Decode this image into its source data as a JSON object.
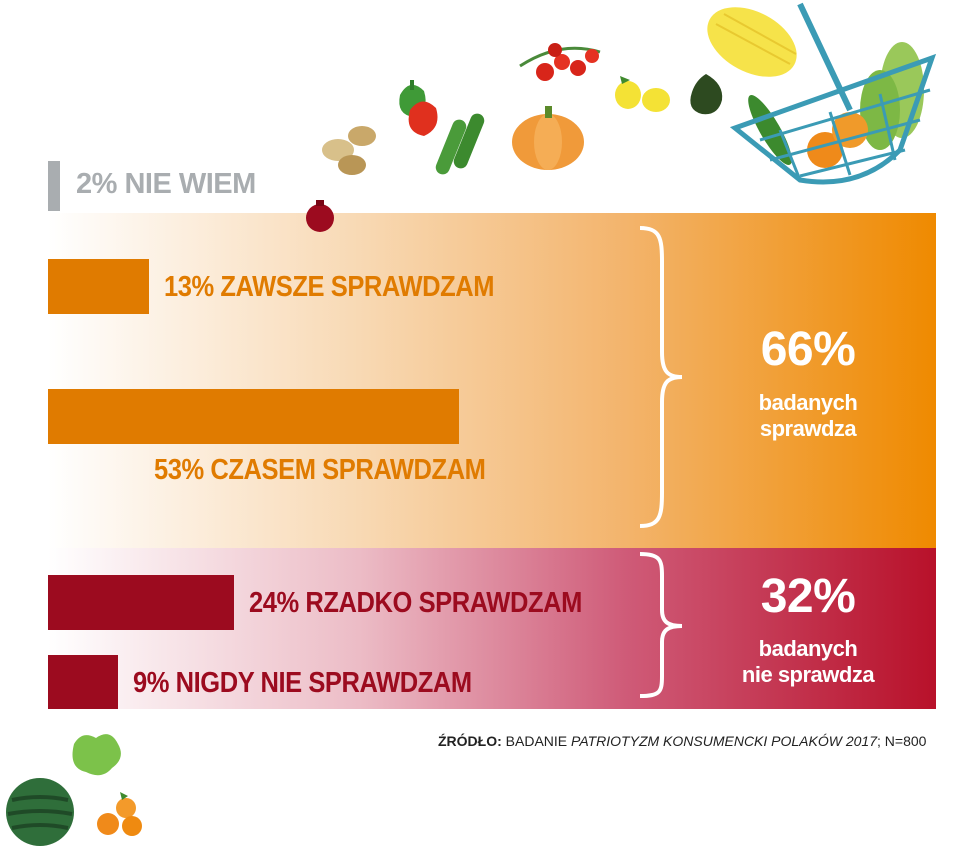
{
  "chart_data": {
    "type": "bar",
    "orientation": "horizontal",
    "categories": [
      "2% NIE WIEM",
      "13% ZAWSZE SPRAWDZAM",
      "53% CZASEM SPRAWDZAM",
      "24% RZADKO SPRAWDZAM",
      "9% NIGDY NIE SPRAWDZAM"
    ],
    "values": [
      2,
      13,
      53,
      24,
      9
    ],
    "unit": "%",
    "groups": [
      {
        "pct": "66%",
        "text_line1": "badanych",
        "text_line2": "sprawdza",
        "color": "#ef8a00"
      },
      {
        "pct": "32%",
        "text_line1": "badanych",
        "text_line2": "nie sprawdza",
        "color": "#b8112a"
      }
    ],
    "source_bold": "ŹRÓDŁO:",
    "source_text": " BADANIE ",
    "source_italic": "PATRIOTYZM KONSUMENCKI POLAKÓW 2017",
    "source_tail": "; N=800"
  },
  "colors": {
    "orange": "#e07b00",
    "dark_red": "#9c0b1f",
    "grey": "#a9adb0"
  },
  "decorations": [
    "basket-icon",
    "melon-icon",
    "avocado-icon",
    "lemon-icon",
    "tomato-icon",
    "pumpkin-icon",
    "pepper-icon",
    "cucumber-icon",
    "potato-icon",
    "pomegranate-icon",
    "lettuce-icon",
    "watermelon-icon",
    "tangerine-icon"
  ]
}
